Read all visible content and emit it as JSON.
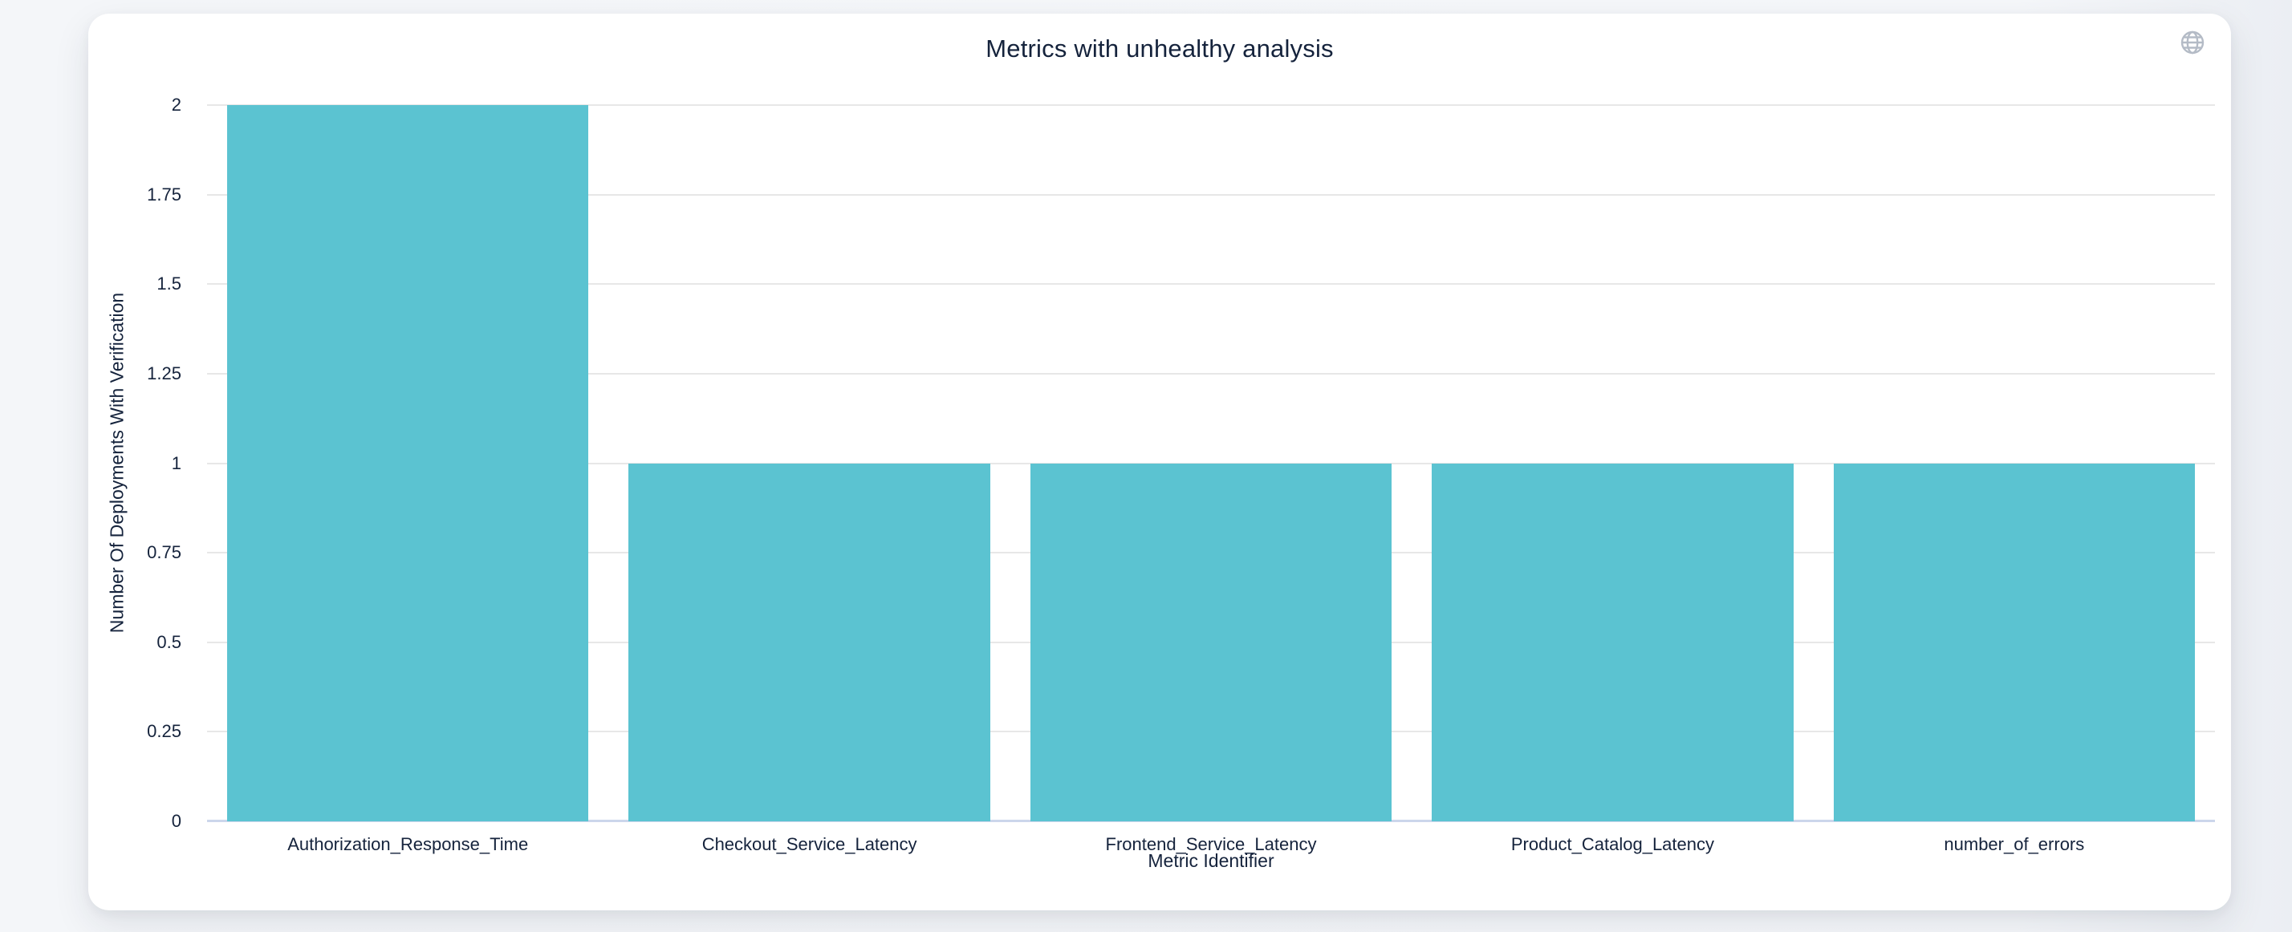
{
  "window": {
    "background": "#f4f6f9"
  },
  "card": {
    "background": "#ffffff"
  },
  "toolbar": {
    "globe_icon": "globe-context-menu-icon"
  },
  "chart_data": {
    "type": "bar",
    "title": "Metrics with unhealthy analysis",
    "categories": [
      "Authorization_Response_Time",
      "Checkout_Service_Latency",
      "Frontend_Service_Latency",
      "Product_Catalog_Latency",
      "number_of_errors"
    ],
    "values": [
      2,
      1,
      1,
      1,
      1
    ],
    "xlabel": "Metric Identifier",
    "ylabel": "Number Of Deployments With Verification",
    "ylim": [
      0,
      2
    ],
    "yticks": [
      0,
      0.25,
      0.5,
      0.75,
      1,
      1.25,
      1.5,
      1.75,
      2
    ],
    "ytick_labels": [
      "0",
      "0.25",
      "0.5",
      "0.75",
      "1",
      "1.25",
      "1.5",
      "1.75",
      "2"
    ],
    "legend": "none",
    "grid": "horizontal",
    "colors": {
      "bar": "#5bc3d1",
      "grid": "#e7e7e7",
      "axis_line": "#ccd6eb",
      "text": "#15233c",
      "icon": "#b4bbc6"
    }
  }
}
